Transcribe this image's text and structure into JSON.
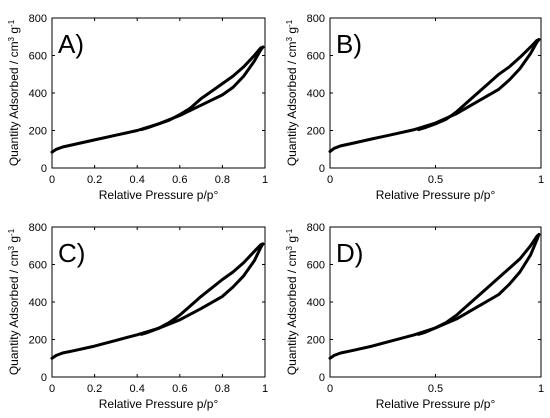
{
  "chart_data": [
    {
      "type": "line",
      "panel_label": "A)",
      "xlabel": "Relative Pressure p/p°",
      "ylabel": "Quantity Adsorbed / cm",
      "ylabel_sup1": "3",
      "ylabel_mid": " g",
      "ylabel_sup2": "-1",
      "xlim": [
        0,
        1
      ],
      "ylim": [
        0,
        800
      ],
      "xticks": [
        0,
        0.2,
        0.4,
        0.6,
        0.8,
        1
      ],
      "xtick_labels": [
        "0",
        "0.2",
        "0.4",
        "0.6",
        "0.8",
        "1"
      ],
      "yticks": [
        0,
        200,
        400,
        600,
        800
      ],
      "ytick_labels": [
        "0",
        "200",
        "400",
        "600",
        "800"
      ],
      "series": [
        {
          "x": [
            0,
            0.02,
            0.05,
            0.1,
            0.2,
            0.3,
            0.4,
            0.5,
            0.6,
            0.7,
            0.8,
            0.85,
            0.9,
            0.95,
            0.98,
            0.99
          ],
          "y": [
            85,
            100,
            112,
            125,
            150,
            175,
            200,
            235,
            280,
            335,
            390,
            430,
            490,
            570,
            630,
            645
          ]
        },
        {
          "x": [
            0.99,
            0.98,
            0.95,
            0.9,
            0.85,
            0.8,
            0.75,
            0.7,
            0.65,
            0.6,
            0.55,
            0.5,
            0.45,
            0.42
          ],
          "y": [
            645,
            640,
            600,
            540,
            490,
            450,
            410,
            370,
            320,
            285,
            255,
            235,
            215,
            205
          ]
        }
      ]
    },
    {
      "type": "line",
      "panel_label": "B)",
      "xlabel": "Relative Pressure p/p°",
      "ylabel": "Quantity Adsorbed / cm",
      "ylabel_sup1": "3",
      "ylabel_mid": " g",
      "ylabel_sup2": "-1",
      "xlim": [
        0,
        1
      ],
      "ylim": [
        0,
        800
      ],
      "xticks": [
        0,
        0.5,
        1
      ],
      "xtick_labels": [
        "0",
        "0.5",
        "1"
      ],
      "yticks": [
        0,
        200,
        400,
        600,
        800
      ],
      "ytick_labels": [
        "0",
        "200",
        "400",
        "600",
        "800"
      ],
      "series": [
        {
          "x": [
            0,
            0.02,
            0.05,
            0.1,
            0.2,
            0.3,
            0.4,
            0.5,
            0.6,
            0.7,
            0.8,
            0.85,
            0.9,
            0.95,
            0.98,
            0.99
          ],
          "y": [
            88,
            105,
            118,
            130,
            155,
            180,
            205,
            240,
            290,
            355,
            420,
            470,
            530,
            610,
            670,
            685
          ]
        },
        {
          "x": [
            0.99,
            0.98,
            0.95,
            0.9,
            0.85,
            0.8,
            0.75,
            0.7,
            0.65,
            0.6,
            0.55,
            0.5,
            0.45,
            0.42
          ],
          "y": [
            685,
            680,
            645,
            590,
            540,
            500,
            450,
            400,
            350,
            300,
            260,
            235,
            215,
            205
          ]
        }
      ]
    },
    {
      "type": "line",
      "panel_label": "C)",
      "xlabel": "Relative Pressure p/p°",
      "ylabel": "Quantity Adsorbed / cm",
      "ylabel_sup1": "3",
      "ylabel_mid": " g",
      "ylabel_sup2": "-1",
      "xlim": [
        0,
        1
      ],
      "ylim": [
        0,
        800
      ],
      "xticks": [
        0,
        0.2,
        0.4,
        0.6,
        0.8,
        1
      ],
      "xtick_labels": [
        "0",
        "0.2",
        "0.4",
        "0.6",
        "0.8",
        "1"
      ],
      "yticks": [
        0,
        200,
        400,
        600,
        800
      ],
      "ytick_labels": [
        "0",
        "200",
        "400",
        "600",
        "800"
      ],
      "series": [
        {
          "x": [
            0,
            0.02,
            0.05,
            0.1,
            0.2,
            0.3,
            0.4,
            0.5,
            0.6,
            0.7,
            0.8,
            0.85,
            0.9,
            0.95,
            0.98,
            0.99
          ],
          "y": [
            100,
            115,
            128,
            140,
            165,
            195,
            225,
            260,
            305,
            365,
            430,
            480,
            540,
            620,
            690,
            710
          ]
        },
        {
          "x": [
            0.99,
            0.98,
            0.95,
            0.9,
            0.85,
            0.8,
            0.75,
            0.7,
            0.65,
            0.6,
            0.55,
            0.5,
            0.45,
            0.42
          ],
          "y": [
            710,
            705,
            670,
            610,
            560,
            520,
            475,
            430,
            380,
            330,
            290,
            260,
            238,
            228
          ]
        }
      ]
    },
    {
      "type": "line",
      "panel_label": "D)",
      "xlabel": "Relative Pressure p/p°",
      "ylabel": "Quantity Adsorbed / cm",
      "ylabel_sup1": "3",
      "ylabel_mid": " g",
      "ylabel_sup2": "-1",
      "xlim": [
        0,
        1
      ],
      "ylim": [
        0,
        800
      ],
      "xticks": [
        0,
        0.5,
        1
      ],
      "xtick_labels": [
        "0",
        "0.5",
        "1"
      ],
      "yticks": [
        0,
        200,
        400,
        600,
        800
      ],
      "ytick_labels": [
        "0",
        "200",
        "400",
        "600",
        "800"
      ],
      "series": [
        {
          "x": [
            0,
            0.02,
            0.05,
            0.1,
            0.2,
            0.3,
            0.4,
            0.5,
            0.6,
            0.7,
            0.8,
            0.85,
            0.9,
            0.95,
            0.98,
            0.99
          ],
          "y": [
            100,
            115,
            128,
            140,
            165,
            195,
            225,
            262,
            310,
            375,
            440,
            495,
            560,
            650,
            730,
            760
          ]
        },
        {
          "x": [
            0.99,
            0.98,
            0.95,
            0.9,
            0.85,
            0.8,
            0.75,
            0.7,
            0.65,
            0.6,
            0.55,
            0.5,
            0.45,
            0.42
          ],
          "y": [
            760,
            750,
            700,
            630,
            580,
            530,
            480,
            430,
            380,
            330,
            290,
            262,
            238,
            228
          ]
        }
      ]
    }
  ]
}
